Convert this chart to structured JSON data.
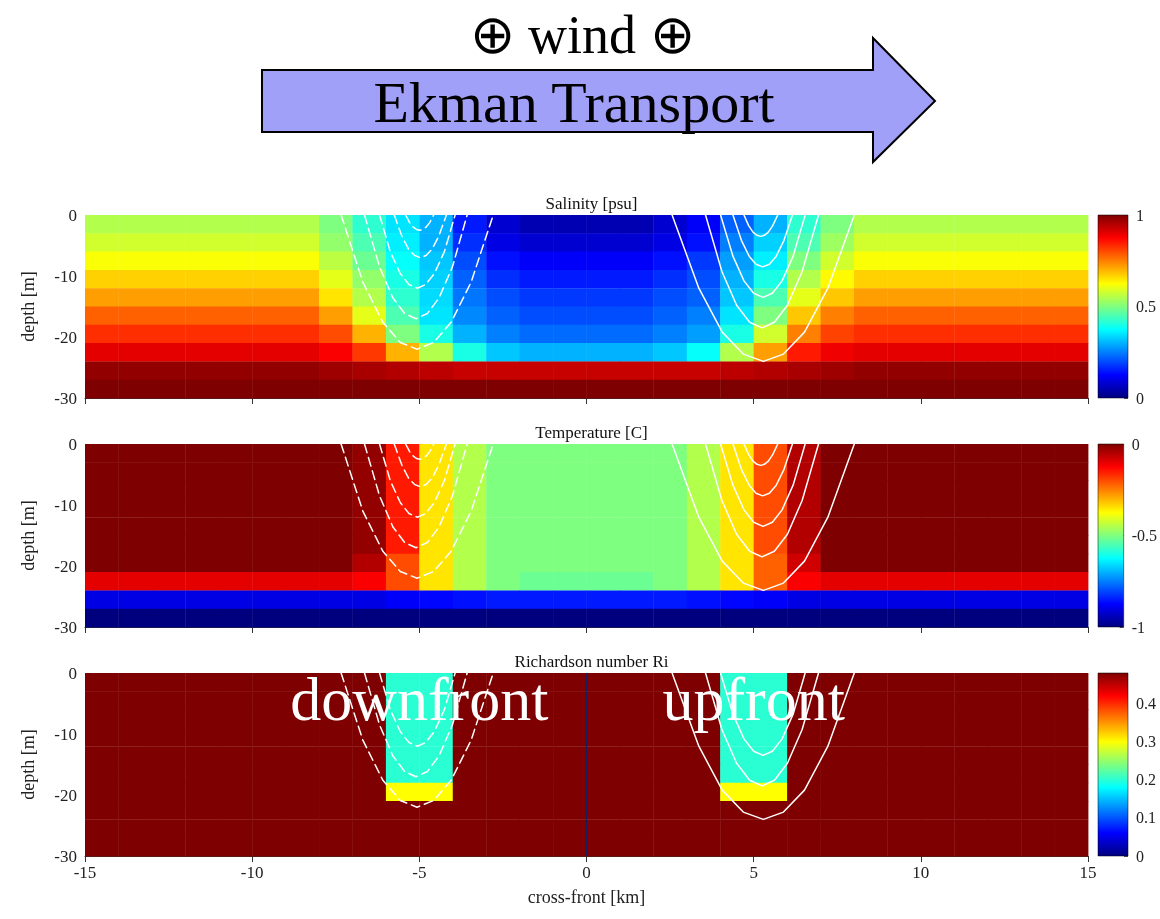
{
  "chart_data": [
    {
      "type": "other",
      "annotations": [
        "⊕ wind ⊕",
        "Ekman Transport"
      ]
    },
    {
      "type": "heatmap",
      "title": "Salinity [psu]",
      "ylabel": "depth [m]",
      "x": [
        -14.5,
        -13.5,
        -12.5,
        -11.5,
        -10.5,
        -9.5,
        -8.5,
        -7.5,
        -6.5,
        -5.5,
        -4.5,
        -3.5,
        -2.5,
        -1.5,
        -0.5,
        0.5,
        1.5,
        2.5,
        3.5,
        4.5,
        5.5,
        6.5,
        7.5,
        8.5,
        9.5,
        10.5,
        11.5,
        12.5,
        13.5,
        14.5
      ],
      "y": [
        -1.5,
        -4.5,
        -7.5,
        -10.5,
        -13.5,
        -16.5,
        -19.5,
        -22.5,
        -25.5,
        -28.5
      ],
      "cells": [
        [
          0.55,
          0.55,
          0.55,
          0.55,
          0.55,
          0.55,
          0.55,
          0.5,
          0.42,
          0.35,
          0.3,
          0.15,
          0.08,
          0.05,
          0.05,
          0.05,
          0.05,
          0.08,
          0.12,
          0.22,
          0.3,
          0.42,
          0.5,
          0.55,
          0.55,
          0.55,
          0.55,
          0.55,
          0.55,
          0.55
        ],
        [
          0.58,
          0.58,
          0.58,
          0.58,
          0.58,
          0.58,
          0.58,
          0.52,
          0.45,
          0.36,
          0.3,
          0.17,
          0.1,
          0.08,
          0.08,
          0.08,
          0.08,
          0.1,
          0.14,
          0.25,
          0.33,
          0.45,
          0.53,
          0.58,
          0.58,
          0.58,
          0.58,
          0.58,
          0.58,
          0.58
        ],
        [
          0.62,
          0.62,
          0.62,
          0.62,
          0.62,
          0.62,
          0.62,
          0.56,
          0.48,
          0.38,
          0.32,
          0.2,
          0.14,
          0.12,
          0.12,
          0.12,
          0.12,
          0.14,
          0.18,
          0.28,
          0.36,
          0.5,
          0.58,
          0.62,
          0.62,
          0.62,
          0.62,
          0.62,
          0.62,
          0.62
        ],
        [
          0.67,
          0.67,
          0.67,
          0.67,
          0.67,
          0.67,
          0.67,
          0.6,
          0.52,
          0.4,
          0.33,
          0.22,
          0.17,
          0.15,
          0.15,
          0.15,
          0.15,
          0.17,
          0.2,
          0.3,
          0.4,
          0.55,
          0.63,
          0.67,
          0.67,
          0.67,
          0.67,
          0.67,
          0.67,
          0.67
        ],
        [
          0.72,
          0.72,
          0.72,
          0.72,
          0.72,
          0.72,
          0.72,
          0.65,
          0.55,
          0.42,
          0.34,
          0.24,
          0.2,
          0.18,
          0.18,
          0.18,
          0.18,
          0.2,
          0.22,
          0.32,
          0.45,
          0.6,
          0.68,
          0.72,
          0.72,
          0.72,
          0.72,
          0.72,
          0.72,
          0.72
        ],
        [
          0.78,
          0.78,
          0.78,
          0.78,
          0.78,
          0.78,
          0.78,
          0.72,
          0.6,
          0.45,
          0.35,
          0.26,
          0.22,
          0.2,
          0.2,
          0.2,
          0.2,
          0.22,
          0.25,
          0.35,
          0.5,
          0.68,
          0.75,
          0.78,
          0.78,
          0.78,
          0.78,
          0.78,
          0.78,
          0.78
        ],
        [
          0.83,
          0.83,
          0.83,
          0.83,
          0.83,
          0.83,
          0.83,
          0.8,
          0.7,
          0.5,
          0.4,
          0.3,
          0.25,
          0.23,
          0.23,
          0.23,
          0.23,
          0.25,
          0.28,
          0.4,
          0.58,
          0.75,
          0.81,
          0.83,
          0.83,
          0.83,
          0.83,
          0.83,
          0.83,
          0.83
        ],
        [
          0.9,
          0.9,
          0.9,
          0.9,
          0.9,
          0.9,
          0.9,
          0.88,
          0.82,
          0.7,
          0.55,
          0.4,
          0.32,
          0.3,
          0.3,
          0.3,
          0.3,
          0.32,
          0.38,
          0.55,
          0.72,
          0.85,
          0.89,
          0.9,
          0.9,
          0.9,
          0.9,
          0.9,
          0.9,
          0.9
        ],
        [
          0.98,
          0.98,
          0.98,
          0.98,
          0.98,
          0.98,
          0.98,
          0.97,
          0.96,
          0.95,
          0.94,
          0.93,
          0.93,
          0.93,
          0.93,
          0.93,
          0.93,
          0.93,
          0.93,
          0.94,
          0.95,
          0.96,
          0.97,
          0.98,
          0.98,
          0.98,
          0.98,
          0.98,
          0.98,
          0.98
        ],
        [
          1,
          1,
          1,
          1,
          1,
          1,
          1,
          1,
          1,
          1,
          1,
          1,
          1,
          1,
          1,
          1,
          1,
          1,
          1,
          1,
          1,
          1,
          1,
          1,
          1,
          1,
          1,
          1,
          1,
          1
        ]
      ],
      "clim": [
        0,
        1
      ],
      "cticks": [
        0,
        0.5,
        1
      ],
      "xlim": [
        -15,
        15
      ],
      "xticks": [
        -15,
        -10,
        -5,
        0,
        5,
        10,
        15
      ],
      "ylim": [
        -30,
        0
      ],
      "yticks": [
        -30,
        -20,
        -10,
        0
      ],
      "tick_labels": "y",
      "series": [
        {
          "type": "line",
          "color": "#ffffff",
          "line_style": "dashed",
          "x": [
            -5.41,
            -5.29,
            -5.18,
            -5.08,
            -4.99,
            -4.9,
            -4.8,
            -4.69,
            -4.57
          ],
          "values": [
            0,
            -1.25,
            -2,
            -2.38,
            -2.5,
            -2.38,
            -2,
            -1.25,
            0
          ]
        },
        {
          "type": "line",
          "color": "#ffffff",
          "line_style": "dashed",
          "x": [
            -5.75,
            -5.52,
            -5.32,
            -5.14,
            -4.97,
            -4.8,
            -4.62,
            -4.42,
            -4.19
          ],
          "values": [
            0,
            -3.5,
            -5.6,
            -6.65,
            -7,
            -6.65,
            -5.6,
            -3.5,
            0
          ]
        },
        {
          "type": "line",
          "color": "#ffffff",
          "line_style": "dashed",
          "x": [
            -6.19,
            -5.87,
            -5.57,
            -5.31,
            -5.06,
            -4.81,
            -4.55,
            -4.25,
            -3.93
          ],
          "values": [
            0,
            -6,
            -9.6,
            -11.4,
            -12,
            -11.4,
            -9.6,
            -6,
            0
          ]
        },
        {
          "type": "line",
          "color": "#ffffff",
          "line_style": "dashed",
          "x": [
            -6.64,
            -6.19,
            -5.79,
            -5.44,
            -5.1,
            -4.76,
            -4.41,
            -4.01,
            -3.57
          ],
          "values": [
            0,
            -8.5,
            -13.6,
            -16.15,
            -17,
            -16.15,
            -13.6,
            -8.5,
            0
          ]
        },
        {
          "type": "line",
          "color": "#ffffff",
          "line_style": "dashed",
          "x": [
            -7.34,
            -6.69,
            -6.09,
            -5.57,
            -5.07,
            -4.57,
            -4.05,
            -3.45,
            -2.79
          ],
          "values": [
            0,
            -11,
            -17.6,
            -20.9,
            -22,
            -20.9,
            -17.6,
            -11,
            0
          ]
        },
        {
          "type": "line",
          "color": "#ffffff",
          "line_style": "solid",
          "x": [
            4.71,
            4.85,
            4.98,
            5.1,
            5.21,
            5.32,
            5.44,
            5.57,
            5.72
          ],
          "values": [
            0,
            -1.75,
            -2.8,
            -3.33,
            -3.5,
            -3.33,
            -2.8,
            -1.75,
            0
          ]
        },
        {
          "type": "line",
          "color": "#ffffff",
          "line_style": "solid",
          "x": [
            4.38,
            4.64,
            4.87,
            5.07,
            5.27,
            5.47,
            5.67,
            5.9,
            6.16
          ],
          "values": [
            0,
            -4.25,
            -6.8,
            -8.08,
            -8.5,
            -8.08,
            -6.8,
            -4.25,
            0
          ]
        },
        {
          "type": "line",
          "color": "#ffffff",
          "line_style": "solid",
          "x": [
            4.01,
            4.38,
            4.71,
            5,
            5.28,
            5.56,
            5.85,
            6.18,
            6.54
          ],
          "values": [
            0,
            -6.75,
            -10.8,
            -12.83,
            -13.5,
            -12.83,
            -10.8,
            -6.75,
            0
          ]
        },
        {
          "type": "line",
          "color": "#ffffff",
          "line_style": "solid",
          "x": [
            3.56,
            4.05,
            4.49,
            4.88,
            5.25,
            5.62,
            6.01,
            6.45,
            6.94
          ],
          "values": [
            0,
            -9.25,
            -14.8,
            -17.58,
            -18.5,
            -17.58,
            -14.8,
            -9.25,
            0
          ]
        },
        {
          "type": "line",
          "color": "#ffffff",
          "line_style": "solid",
          "x": [
            2.56,
            3.36,
            4.06,
            4.69,
            5.29,
            5.89,
            6.52,
            7.22,
            8.01
          ],
          "values": [
            0,
            -12,
            -19.2,
            -22.8,
            -24,
            -22.8,
            -19.2,
            -12,
            0
          ]
        }
      ]
    },
    {
      "type": "heatmap",
      "title": "Temperature [C]",
      "ylabel": "depth [m]",
      "x": [
        -14.5,
        -13.5,
        -12.5,
        -11.5,
        -10.5,
        -9.5,
        -8.5,
        -7.5,
        -6.5,
        -5.5,
        -4.5,
        -3.5,
        -2.5,
        -1.5,
        -0.5,
        0.5,
        1.5,
        2.5,
        3.5,
        4.5,
        5.5,
        6.5,
        7.5,
        8.5,
        9.5,
        10.5,
        11.5,
        12.5,
        13.5,
        14.5
      ],
      "y": [
        -1.5,
        -4.5,
        -7.5,
        -10.5,
        -13.5,
        -16.5,
        -19.5,
        -22.5,
        -25.5,
        -28.5
      ],
      "cells": [
        [
          0,
          0,
          0,
          0,
          0,
          0,
          0,
          0,
          -0.02,
          -0.15,
          -0.35,
          -0.45,
          -0.5,
          -0.5,
          -0.5,
          -0.5,
          -0.5,
          -0.5,
          -0.45,
          -0.35,
          -0.2,
          -0.05,
          0,
          0,
          0,
          0,
          0,
          0,
          0,
          0
        ],
        [
          0,
          0,
          0,
          0,
          0,
          0,
          0,
          0,
          -0.02,
          -0.15,
          -0.35,
          -0.45,
          -0.5,
          -0.5,
          -0.5,
          -0.5,
          -0.5,
          -0.5,
          -0.45,
          -0.35,
          -0.2,
          -0.05,
          0,
          0,
          0,
          0,
          0,
          0,
          0,
          0
        ],
        [
          0,
          0,
          0,
          0,
          0,
          0,
          0,
          0,
          -0.02,
          -0.15,
          -0.35,
          -0.45,
          -0.5,
          -0.5,
          -0.5,
          -0.5,
          -0.5,
          -0.5,
          -0.45,
          -0.35,
          -0.2,
          -0.05,
          0,
          0,
          0,
          0,
          0,
          0,
          0,
          0
        ],
        [
          0,
          0,
          0,
          0,
          0,
          0,
          0,
          0,
          -0.02,
          -0.15,
          -0.35,
          -0.45,
          -0.5,
          -0.5,
          -0.5,
          -0.5,
          -0.5,
          -0.5,
          -0.45,
          -0.35,
          -0.2,
          -0.05,
          0,
          0,
          0,
          0,
          0,
          0,
          0,
          0
        ],
        [
          0,
          0,
          0,
          0,
          0,
          0,
          0,
          0,
          -0.02,
          -0.15,
          -0.35,
          -0.45,
          -0.5,
          -0.5,
          -0.5,
          -0.5,
          -0.5,
          -0.5,
          -0.45,
          -0.35,
          -0.2,
          -0.05,
          0,
          0,
          0,
          0,
          0,
          0,
          0,
          0
        ],
        [
          0,
          0,
          0,
          0,
          0,
          0,
          0,
          0,
          -0.02,
          -0.15,
          -0.35,
          -0.45,
          -0.5,
          -0.5,
          -0.5,
          -0.5,
          -0.5,
          -0.5,
          -0.45,
          -0.35,
          -0.2,
          -0.05,
          0,
          0,
          0,
          0,
          0,
          0,
          0,
          0
        ],
        [
          0,
          0,
          0,
          0,
          0,
          0,
          0,
          0,
          -0.05,
          -0.2,
          -0.35,
          -0.45,
          -0.5,
          -0.5,
          -0.5,
          -0.5,
          -0.5,
          -0.5,
          -0.45,
          -0.35,
          -0.22,
          -0.08,
          0,
          0,
          0,
          0,
          0,
          0,
          0,
          0
        ],
        [
          -0.1,
          -0.1,
          -0.1,
          -0.1,
          -0.1,
          -0.1,
          -0.1,
          -0.1,
          -0.12,
          -0.2,
          -0.35,
          -0.45,
          -0.5,
          -0.52,
          -0.52,
          -0.52,
          -0.52,
          -0.5,
          -0.45,
          -0.35,
          -0.22,
          -0.12,
          -0.1,
          -0.1,
          -0.1,
          -0.1,
          -0.1,
          -0.1,
          -0.1,
          -0.1
        ],
        [
          -0.9,
          -0.9,
          -0.9,
          -0.9,
          -0.9,
          -0.9,
          -0.9,
          -0.9,
          -0.9,
          -0.88,
          -0.87,
          -0.86,
          -0.85,
          -0.85,
          -0.85,
          -0.85,
          -0.85,
          -0.85,
          -0.86,
          -0.87,
          -0.88,
          -0.9,
          -0.9,
          -0.9,
          -0.9,
          -0.9,
          -0.9,
          -0.9,
          -0.9,
          -0.9
        ],
        [
          -1,
          -1,
          -1,
          -1,
          -1,
          -1,
          -1,
          -1,
          -1,
          -1,
          -1,
          -1,
          -1,
          -1,
          -1,
          -1,
          -1,
          -1,
          -1,
          -1,
          -1,
          -1,
          -1,
          -1,
          -1,
          -1,
          -1,
          -1,
          -1,
          -1
        ]
      ],
      "clim": [
        -1,
        0
      ],
      "cticks": [
        -1,
        -0.5,
        0
      ],
      "xlim": [
        -15,
        15
      ],
      "xticks": [
        -15,
        -10,
        -5,
        0,
        5,
        10,
        15
      ],
      "ylim": [
        -30,
        0
      ],
      "yticks": [
        -30,
        -20,
        -10,
        0
      ],
      "tick_labels": "y",
      "series": [
        {
          "type": "line",
          "color": "#ffffff",
          "line_style": "dashed",
          "x": [
            -5.41,
            -5.29,
            -5.18,
            -5.08,
            -4.99,
            -4.9,
            -4.8,
            -4.69,
            -4.57
          ],
          "values": [
            0,
            -1.25,
            -2,
            -2.38,
            -2.5,
            -2.38,
            -2,
            -1.25,
            0
          ]
        },
        {
          "type": "line",
          "color": "#ffffff",
          "line_style": "dashed",
          "x": [
            -5.75,
            -5.52,
            -5.32,
            -5.14,
            -4.97,
            -4.8,
            -4.62,
            -4.42,
            -4.19
          ],
          "values": [
            0,
            -3.5,
            -5.6,
            -6.65,
            -7,
            -6.65,
            -5.6,
            -3.5,
            0
          ]
        },
        {
          "type": "line",
          "color": "#ffffff",
          "line_style": "dashed",
          "x": [
            -6.19,
            -5.87,
            -5.57,
            -5.31,
            -5.06,
            -4.81,
            -4.55,
            -4.25,
            -3.93
          ],
          "values": [
            0,
            -6,
            -9.6,
            -11.4,
            -12,
            -11.4,
            -9.6,
            -6,
            0
          ]
        },
        {
          "type": "line",
          "color": "#ffffff",
          "line_style": "dashed",
          "x": [
            -6.64,
            -6.19,
            -5.79,
            -5.44,
            -5.1,
            -4.76,
            -4.41,
            -4.01,
            -3.57
          ],
          "values": [
            0,
            -8.5,
            -13.6,
            -16.15,
            -17,
            -16.15,
            -13.6,
            -8.5,
            0
          ]
        },
        {
          "type": "line",
          "color": "#ffffff",
          "line_style": "dashed",
          "x": [
            -7.34,
            -6.69,
            -6.09,
            -5.57,
            -5.07,
            -4.57,
            -4.05,
            -3.45,
            -2.79
          ],
          "values": [
            0,
            -11,
            -17.6,
            -20.9,
            -22,
            -20.9,
            -17.6,
            -11,
            0
          ]
        },
        {
          "type": "line",
          "color": "#ffffff",
          "line_style": "solid",
          "x": [
            4.71,
            4.85,
            4.98,
            5.1,
            5.21,
            5.32,
            5.44,
            5.57,
            5.72
          ],
          "values": [
            0,
            -1.75,
            -2.8,
            -3.33,
            -3.5,
            -3.33,
            -2.8,
            -1.75,
            0
          ]
        },
        {
          "type": "line",
          "color": "#ffffff",
          "line_style": "solid",
          "x": [
            4.38,
            4.64,
            4.87,
            5.07,
            5.27,
            5.47,
            5.67,
            5.9,
            6.16
          ],
          "values": [
            0,
            -4.25,
            -6.8,
            -8.08,
            -8.5,
            -8.08,
            -6.8,
            -4.25,
            0
          ]
        },
        {
          "type": "line",
          "color": "#ffffff",
          "line_style": "solid",
          "x": [
            4.01,
            4.38,
            4.71,
            5,
            5.28,
            5.56,
            5.85,
            6.18,
            6.54
          ],
          "values": [
            0,
            -6.75,
            -10.8,
            -12.83,
            -13.5,
            -12.83,
            -10.8,
            -6.75,
            0
          ]
        },
        {
          "type": "line",
          "color": "#ffffff",
          "line_style": "solid",
          "x": [
            3.56,
            4.05,
            4.49,
            4.88,
            5.25,
            5.62,
            6.01,
            6.45,
            6.94
          ],
          "values": [
            0,
            -9.25,
            -14.8,
            -17.58,
            -18.5,
            -17.58,
            -14.8,
            -9.25,
            0
          ]
        },
        {
          "type": "line",
          "color": "#ffffff",
          "line_style": "solid",
          "x": [
            2.56,
            3.36,
            4.06,
            4.69,
            5.29,
            5.89,
            6.52,
            7.22,
            8.01
          ],
          "values": [
            0,
            -12,
            -19.2,
            -22.8,
            -24,
            -22.8,
            -19.2,
            -12,
            0
          ]
        }
      ]
    },
    {
      "type": "heatmap",
      "title": "Richardson number Ri",
      "ylabel": "depth [m]",
      "xlabel": "cross-front [km]",
      "x": [
        -14.5,
        -13.5,
        -12.5,
        -11.5,
        -10.5,
        -9.5,
        -8.5,
        -7.5,
        -6.5,
        -5.5,
        -4.5,
        -3.5,
        -2.5,
        -1.5,
        -0.5,
        0.5,
        1.5,
        2.5,
        3.5,
        4.5,
        5.5,
        6.5,
        7.5,
        8.5,
        9.5,
        10.5,
        11.5,
        12.5,
        13.5,
        14.5
      ],
      "y": [
        -1.5,
        -4.5,
        -7.5,
        -10.5,
        -13.5,
        -16.5,
        -19.5,
        -22.5,
        -25.5,
        -28.5
      ],
      "cells": [
        [
          0.48,
          0.48,
          0.48,
          0.48,
          0.48,
          0.48,
          0.48,
          0.48,
          0.48,
          0.2,
          0.2,
          0.48,
          0.48,
          0.48,
          0.48,
          0.48,
          0.48,
          0.48,
          0.48,
          0.2,
          0.2,
          0.48,
          0.48,
          0.48,
          0.48,
          0.48,
          0.48,
          0.48,
          0.48,
          0.48
        ],
        [
          0.48,
          0.48,
          0.48,
          0.48,
          0.48,
          0.48,
          0.48,
          0.48,
          0.48,
          0.2,
          0.2,
          0.48,
          0.48,
          0.48,
          0.48,
          0.48,
          0.48,
          0.48,
          0.48,
          0.2,
          0.2,
          0.48,
          0.48,
          0.48,
          0.48,
          0.48,
          0.48,
          0.48,
          0.48,
          0.48
        ],
        [
          0.48,
          0.48,
          0.48,
          0.48,
          0.48,
          0.48,
          0.48,
          0.48,
          0.48,
          0.2,
          0.2,
          0.48,
          0.48,
          0.48,
          0.48,
          0.48,
          0.48,
          0.48,
          0.48,
          0.2,
          0.2,
          0.48,
          0.48,
          0.48,
          0.48,
          0.48,
          0.48,
          0.48,
          0.48,
          0.48
        ],
        [
          0.48,
          0.48,
          0.48,
          0.48,
          0.48,
          0.48,
          0.48,
          0.48,
          0.48,
          0.2,
          0.2,
          0.48,
          0.48,
          0.48,
          0.48,
          0.48,
          0.48,
          0.48,
          0.48,
          0.2,
          0.2,
          0.48,
          0.48,
          0.48,
          0.48,
          0.48,
          0.48,
          0.48,
          0.48,
          0.48
        ],
        [
          0.48,
          0.48,
          0.48,
          0.48,
          0.48,
          0.48,
          0.48,
          0.48,
          0.48,
          0.2,
          0.2,
          0.48,
          0.48,
          0.48,
          0.48,
          0.48,
          0.48,
          0.48,
          0.48,
          0.2,
          0.2,
          0.48,
          0.48,
          0.48,
          0.48,
          0.48,
          0.48,
          0.48,
          0.48,
          0.48
        ],
        [
          0.48,
          0.48,
          0.48,
          0.48,
          0.48,
          0.48,
          0.48,
          0.48,
          0.48,
          0.2,
          0.2,
          0.48,
          0.48,
          0.48,
          0.48,
          0.48,
          0.48,
          0.48,
          0.48,
          0.2,
          0.2,
          0.48,
          0.48,
          0.48,
          0.48,
          0.48,
          0.48,
          0.48,
          0.48,
          0.48
        ],
        [
          0.48,
          0.48,
          0.48,
          0.48,
          0.48,
          0.48,
          0.48,
          0.48,
          0.48,
          0.3,
          0.3,
          0.48,
          0.48,
          0.48,
          0.48,
          0.48,
          0.48,
          0.48,
          0.48,
          0.3,
          0.3,
          0.48,
          0.48,
          0.48,
          0.48,
          0.48,
          0.48,
          0.48,
          0.48,
          0.48
        ],
        [
          0.48,
          0.48,
          0.48,
          0.48,
          0.48,
          0.48,
          0.48,
          0.48,
          0.48,
          0.48,
          0.48,
          0.48,
          0.48,
          0.48,
          0.48,
          0.48,
          0.48,
          0.48,
          0.48,
          0.48,
          0.48,
          0.48,
          0.48,
          0.48,
          0.48,
          0.48,
          0.48,
          0.48,
          0.48,
          0.48
        ],
        [
          0.48,
          0.48,
          0.48,
          0.48,
          0.48,
          0.48,
          0.48,
          0.48,
          0.48,
          0.48,
          0.48,
          0.48,
          0.48,
          0.48,
          0.48,
          0.48,
          0.48,
          0.48,
          0.48,
          0.48,
          0.48,
          0.48,
          0.48,
          0.48,
          0.48,
          0.48,
          0.48,
          0.48,
          0.48,
          0.48
        ],
        [
          0.48,
          0.48,
          0.48,
          0.48,
          0.48,
          0.48,
          0.48,
          0.48,
          0.48,
          0.48,
          0.48,
          0.48,
          0.48,
          0.48,
          0.48,
          0.48,
          0.48,
          0.48,
          0.48,
          0.48,
          0.48,
          0.48,
          0.48,
          0.48,
          0.48,
          0.48,
          0.48,
          0.48,
          0.48,
          0.48
        ]
      ],
      "clim": [
        0,
        0.48
      ],
      "cticks": [
        0,
        0.1,
        0.2,
        0.3,
        0.4
      ],
      "xlim": [
        -15,
        15
      ],
      "xticks": [
        -15,
        -10,
        -5,
        0,
        5,
        10,
        15
      ],
      "ylim": [
        -30,
        0
      ],
      "yticks": [
        -30,
        -20,
        -10,
        0
      ],
      "annotations": [
        "downfront",
        "upfront"
      ],
      "ref_lines": [
        {
          "axis": "x",
          "value": 0,
          "color": "#1a1a5e"
        }
      ],
      "series": [
        {
          "type": "line",
          "color": "#ffffff",
          "line_style": "dashed",
          "x": [
            -6.19,
            -5.87,
            -5.57,
            -5.31,
            -5.06,
            -4.81,
            -4.55,
            -4.25,
            -3.93
          ],
          "values": [
            0,
            -6,
            -9.6,
            -11.4,
            -12,
            -11.4,
            -9.6,
            -6,
            0
          ]
        },
        {
          "type": "line",
          "color": "#ffffff",
          "line_style": "dashed",
          "x": [
            -6.64,
            -6.19,
            -5.79,
            -5.44,
            -5.1,
            -4.76,
            -4.41,
            -4.01,
            -3.57
          ],
          "values": [
            0,
            -8.5,
            -13.6,
            -16.15,
            -17,
            -16.15,
            -13.6,
            -8.5,
            0
          ]
        },
        {
          "type": "line",
          "color": "#ffffff",
          "line_style": "dashed",
          "x": [
            -7.34,
            -6.69,
            -6.09,
            -5.57,
            -5.07,
            -4.57,
            -4.05,
            -3.45,
            -2.79
          ],
          "values": [
            0,
            -11,
            -17.6,
            -20.9,
            -22,
            -20.9,
            -17.6,
            -11,
            0
          ]
        },
        {
          "type": "line",
          "color": "#ffffff",
          "line_style": "solid",
          "x": [
            4.01,
            4.38,
            4.71,
            5,
            5.28,
            5.56,
            5.85,
            6.18,
            6.54
          ],
          "values": [
            0,
            -6.75,
            -10.8,
            -12.83,
            -13.5,
            -12.83,
            -10.8,
            -6.75,
            0
          ]
        },
        {
          "type": "line",
          "color": "#ffffff",
          "line_style": "solid",
          "x": [
            3.56,
            4.05,
            4.49,
            4.88,
            5.25,
            5.62,
            6.01,
            6.45,
            6.94
          ],
          "values": [
            0,
            -9.25,
            -14.8,
            -17.58,
            -18.5,
            -17.58,
            -14.8,
            -9.25,
            0
          ]
        },
        {
          "type": "line",
          "color": "#ffffff",
          "line_style": "solid",
          "x": [
            2.56,
            3.36,
            4.06,
            4.69,
            5.29,
            5.89,
            6.52,
            7.22,
            8.01
          ],
          "values": [
            0,
            -12,
            -19.2,
            -22.8,
            -24,
            -22.8,
            -19.2,
            -12,
            0
          ]
        }
      ]
    }
  ]
}
